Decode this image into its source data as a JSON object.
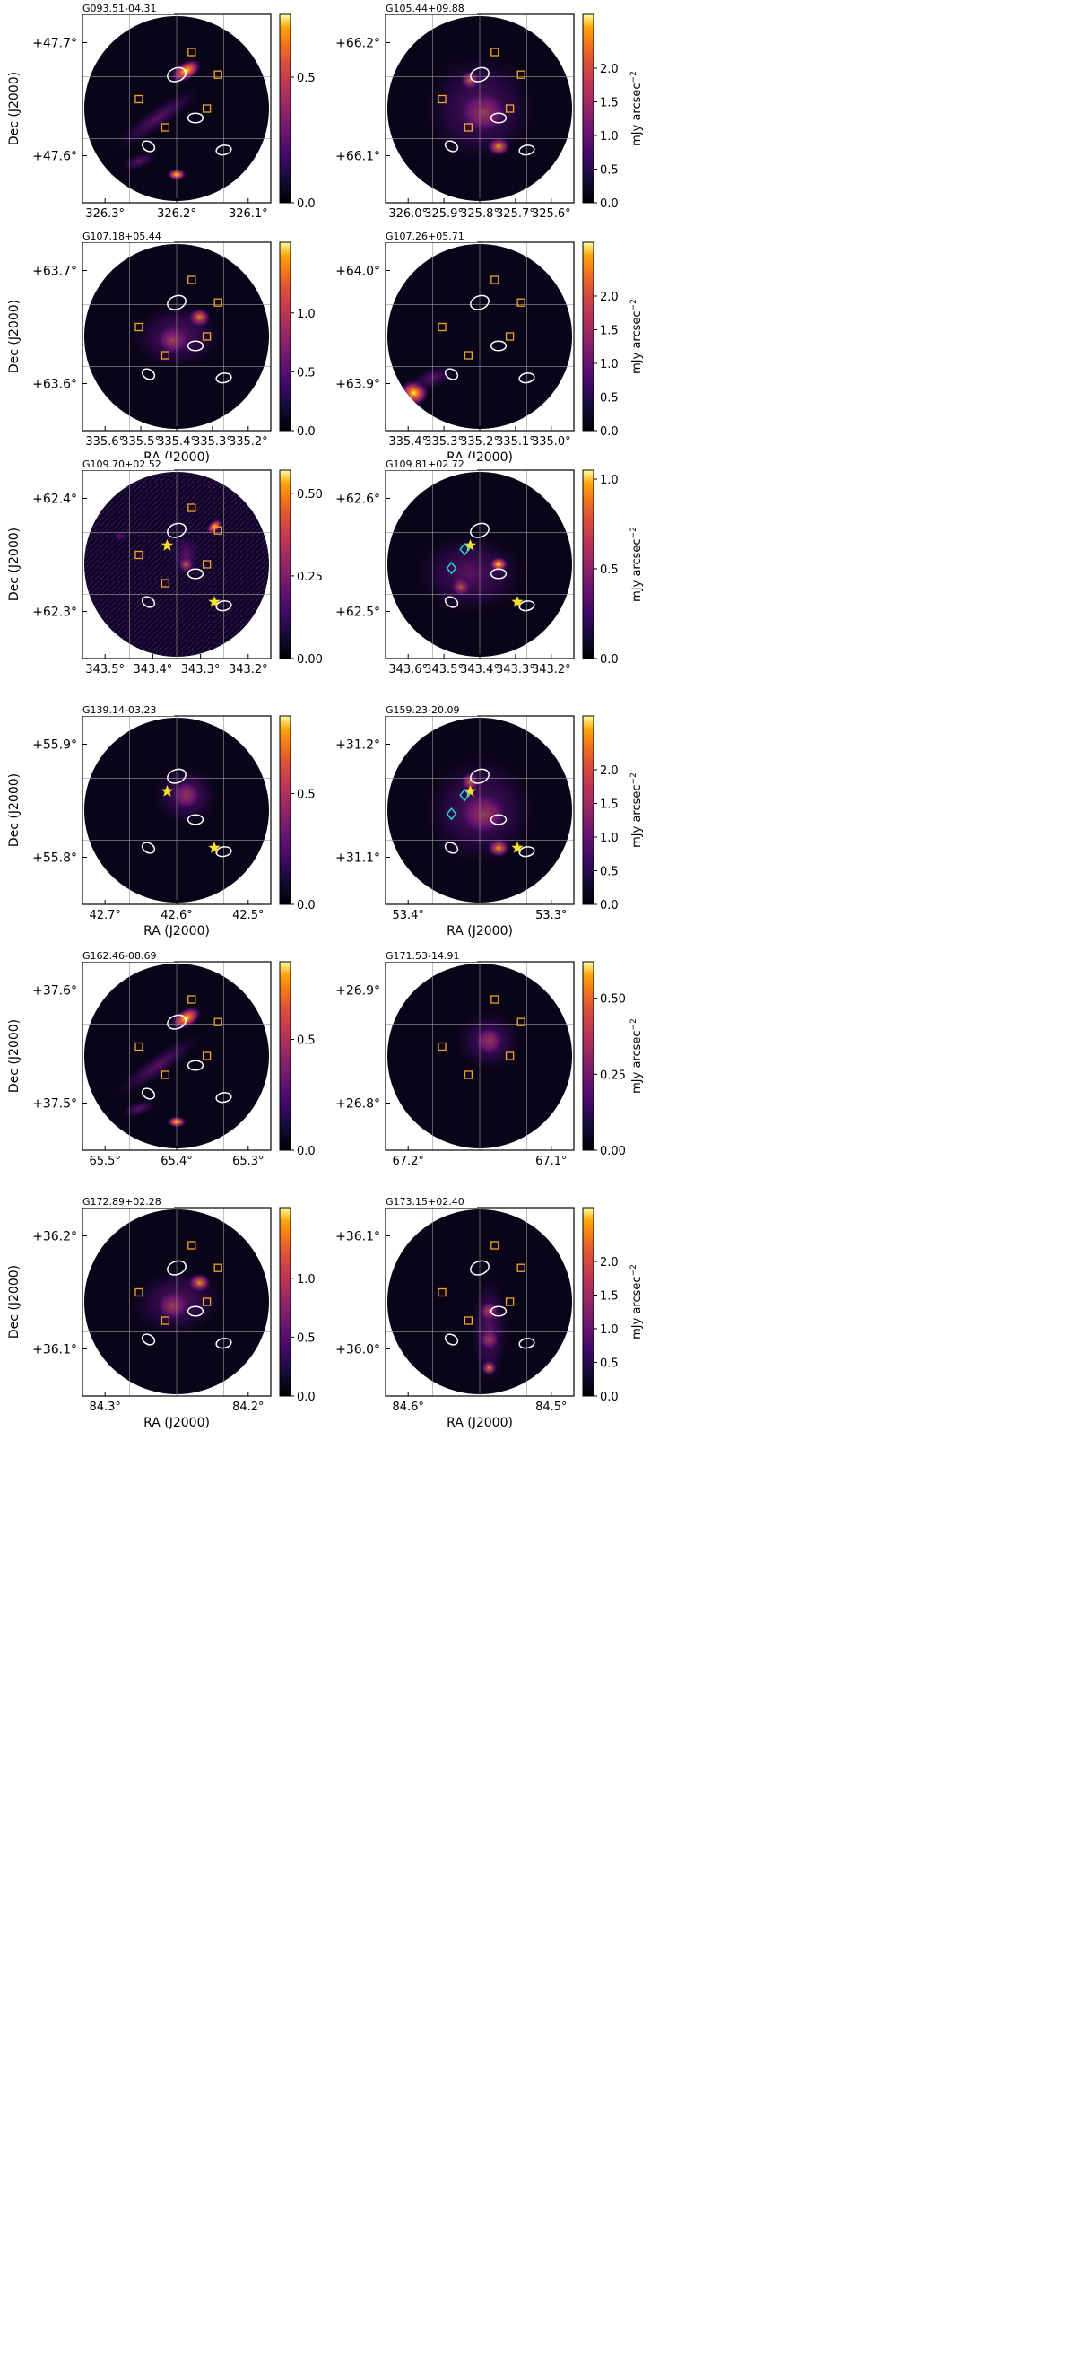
{
  "figure": {
    "colormap": "inferno",
    "catalog_colors": {
      "ellipse": "#ffffff",
      "square": "#f5a623",
      "star": "#f5e02c",
      "diamond": "#27d3e6"
    },
    "cbar_unit_label": "mJy arcsec$^{-2}$",
    "cbar_unit_text": "mJy arcsec",
    "cbar_unit_exp": "−2",
    "xlabel": "RA (J2000)",
    "ylabel": "Dec (J2000)"
  },
  "chart_data": [
    {
      "type": "heatmap",
      "title": "G093.51-04.31",
      "x_ticks": [
        "326.3°",
        "326.2°",
        "326.1°"
      ],
      "y_ticks": [
        "+47.7°",
        "+47.6°"
      ],
      "xlabel": "",
      "ylabel": "Dec (J2000)",
      "cbar_ticks": [
        "0.0",
        "0.5"
      ],
      "cbar_range": [
        0,
        0.75
      ],
      "cbar_unit": false,
      "emission": "filamentary",
      "catalog_markers": [
        "ellipse",
        "square"
      ]
    },
    {
      "type": "heatmap",
      "title": "G105.44+09.88",
      "x_ticks": [
        "326.0°",
        "325.9°",
        "325.8°",
        "325.7°",
        "325.6°"
      ],
      "y_ticks": [
        "+66.2°",
        "+66.1°"
      ],
      "xlabel": "",
      "ylabel": "",
      "cbar_ticks": [
        "0.0",
        "0.5",
        "1.0",
        "1.5",
        "2.0"
      ],
      "cbar_range": [
        0,
        2.8
      ],
      "cbar_unit": true,
      "emission": "clustered",
      "catalog_markers": [
        "ellipse",
        "square"
      ]
    },
    {
      "type": "heatmap",
      "title": "G107.18+05.44",
      "x_ticks": [
        "335.6°",
        "335.5°",
        "335.4°",
        "335.3°",
        "335.2°"
      ],
      "y_ticks": [
        "+63.7°",
        "+63.6°"
      ],
      "xlabel": "RA (J2000)",
      "ylabel": "Dec (J2000)",
      "cbar_ticks": [
        "0.0",
        "0.5",
        "1.0"
      ],
      "cbar_range": [
        0,
        1.6
      ],
      "cbar_unit": false,
      "emission": "central",
      "catalog_markers": [
        "ellipse",
        "square"
      ]
    },
    {
      "type": "heatmap",
      "title": "G107.26+05.71",
      "x_ticks": [
        "335.4°",
        "335.3°",
        "335.2°",
        "335.1°",
        "335.0°"
      ],
      "y_ticks": [
        "+64.0°",
        "+63.9°"
      ],
      "xlabel": "RA (J2000)",
      "ylabel": "",
      "cbar_ticks": [
        "0.0",
        "0.5",
        "1.0",
        "1.5",
        "2.0"
      ],
      "cbar_range": [
        0,
        2.8
      ],
      "cbar_unit": true,
      "emission": "edge-bright",
      "catalog_markers": [
        "ellipse",
        "square"
      ]
    },
    {
      "type": "heatmap",
      "title": "G109.70+02.52",
      "x_ticks": [
        "343.5°",
        "343.4°",
        "343.3°",
        "343.2°"
      ],
      "y_ticks": [
        "+62.4°",
        "+62.3°"
      ],
      "xlabel": "",
      "ylabel": "Dec (J2000)",
      "cbar_ticks": [
        "0.00",
        "0.25",
        "0.50"
      ],
      "cbar_range": [
        0,
        0.57
      ],
      "cbar_unit": false,
      "emission": "noisy",
      "catalog_markers": [
        "ellipse",
        "square",
        "star"
      ]
    },
    {
      "type": "heatmap",
      "title": "G109.81+02.72",
      "x_ticks": [
        "343.6°",
        "343.5°",
        "343.4°",
        "343.3°",
        "343.2°"
      ],
      "y_ticks": [
        "+62.6°",
        "+62.5°"
      ],
      "xlabel": "",
      "ylabel": "",
      "cbar_ticks": [
        "0.0",
        "0.5",
        "1.0"
      ],
      "cbar_range": [
        0,
        1.05
      ],
      "cbar_unit": true,
      "emission": "diffuse",
      "catalog_markers": [
        "ellipse",
        "star",
        "diamond"
      ]
    },
    {
      "type": "heatmap",
      "title": "G139.14-03.23",
      "x_ticks": [
        "42.7°",
        "42.6°",
        "42.5°"
      ],
      "y_ticks": [
        "+55.9°",
        "+55.8°"
      ],
      "xlabel": "RA (J2000)",
      "ylabel": "Dec (J2000)",
      "cbar_ticks": [
        "0.0",
        "0.5"
      ],
      "cbar_range": [
        0,
        0.85
      ],
      "cbar_unit": false,
      "emission": "compact",
      "catalog_markers": [
        "ellipse",
        "star"
      ]
    },
    {
      "type": "heatmap",
      "title": "G159.23-20.09",
      "x_ticks": [
        "53.4°",
        "53.3°"
      ],
      "y_ticks": [
        "+31.2°",
        "+31.1°"
      ],
      "xlabel": "RA (J2000)",
      "ylabel": "",
      "cbar_ticks": [
        "0.0",
        "0.5",
        "1.0",
        "1.5",
        "2.0"
      ],
      "cbar_range": [
        0,
        2.8
      ],
      "cbar_unit": true,
      "emission": "clustered",
      "catalog_markers": [
        "ellipse",
        "star",
        "diamond"
      ]
    },
    {
      "type": "heatmap",
      "title": "G162.46-08.69",
      "x_ticks": [
        "65.5°",
        "65.4°",
        "65.3°"
      ],
      "y_ticks": [
        "+37.6°",
        "+37.5°"
      ],
      "xlabel": "",
      "ylabel": "Dec (J2000)",
      "cbar_ticks": [
        "0.0",
        "0.5"
      ],
      "cbar_range": [
        0,
        0.85
      ],
      "cbar_unit": false,
      "emission": "filamentary",
      "catalog_markers": [
        "ellipse",
        "square"
      ]
    },
    {
      "type": "heatmap",
      "title": "G171.53-14.91",
      "x_ticks": [
        "67.2°",
        "67.1°"
      ],
      "y_ticks": [
        "+26.9°",
        "+26.8°"
      ],
      "xlabel": "",
      "ylabel": "",
      "cbar_ticks": [
        "0.00",
        "0.25",
        "0.50"
      ],
      "cbar_range": [
        0,
        0.62
      ],
      "cbar_unit": true,
      "emission": "compact",
      "catalog_markers": [
        "square"
      ]
    },
    {
      "type": "heatmap",
      "title": "G172.89+02.28",
      "x_ticks": [
        "84.3°",
        "84.2°"
      ],
      "y_ticks": [
        "+36.2°",
        "+36.1°"
      ],
      "xlabel": "RA (J2000)",
      "ylabel": "Dec (J2000)",
      "cbar_ticks": [
        "0.0",
        "0.5",
        "1.0"
      ],
      "cbar_range": [
        0,
        1.6
      ],
      "cbar_unit": false,
      "emission": "central",
      "catalog_markers": [
        "ellipse",
        "square"
      ]
    },
    {
      "type": "heatmap",
      "title": "G173.15+02.40",
      "x_ticks": [
        "84.6°",
        "84.5°"
      ],
      "y_ticks": [
        "+36.1°",
        "+36.0°"
      ],
      "xlabel": "RA (J2000)",
      "ylabel": "",
      "cbar_ticks": [
        "0.0",
        "0.5",
        "1.0",
        "1.5",
        "2.0"
      ],
      "cbar_range": [
        0,
        2.8
      ],
      "cbar_unit": true,
      "emission": "vertical-chain",
      "catalog_markers": [
        "ellipse",
        "square"
      ]
    }
  ]
}
